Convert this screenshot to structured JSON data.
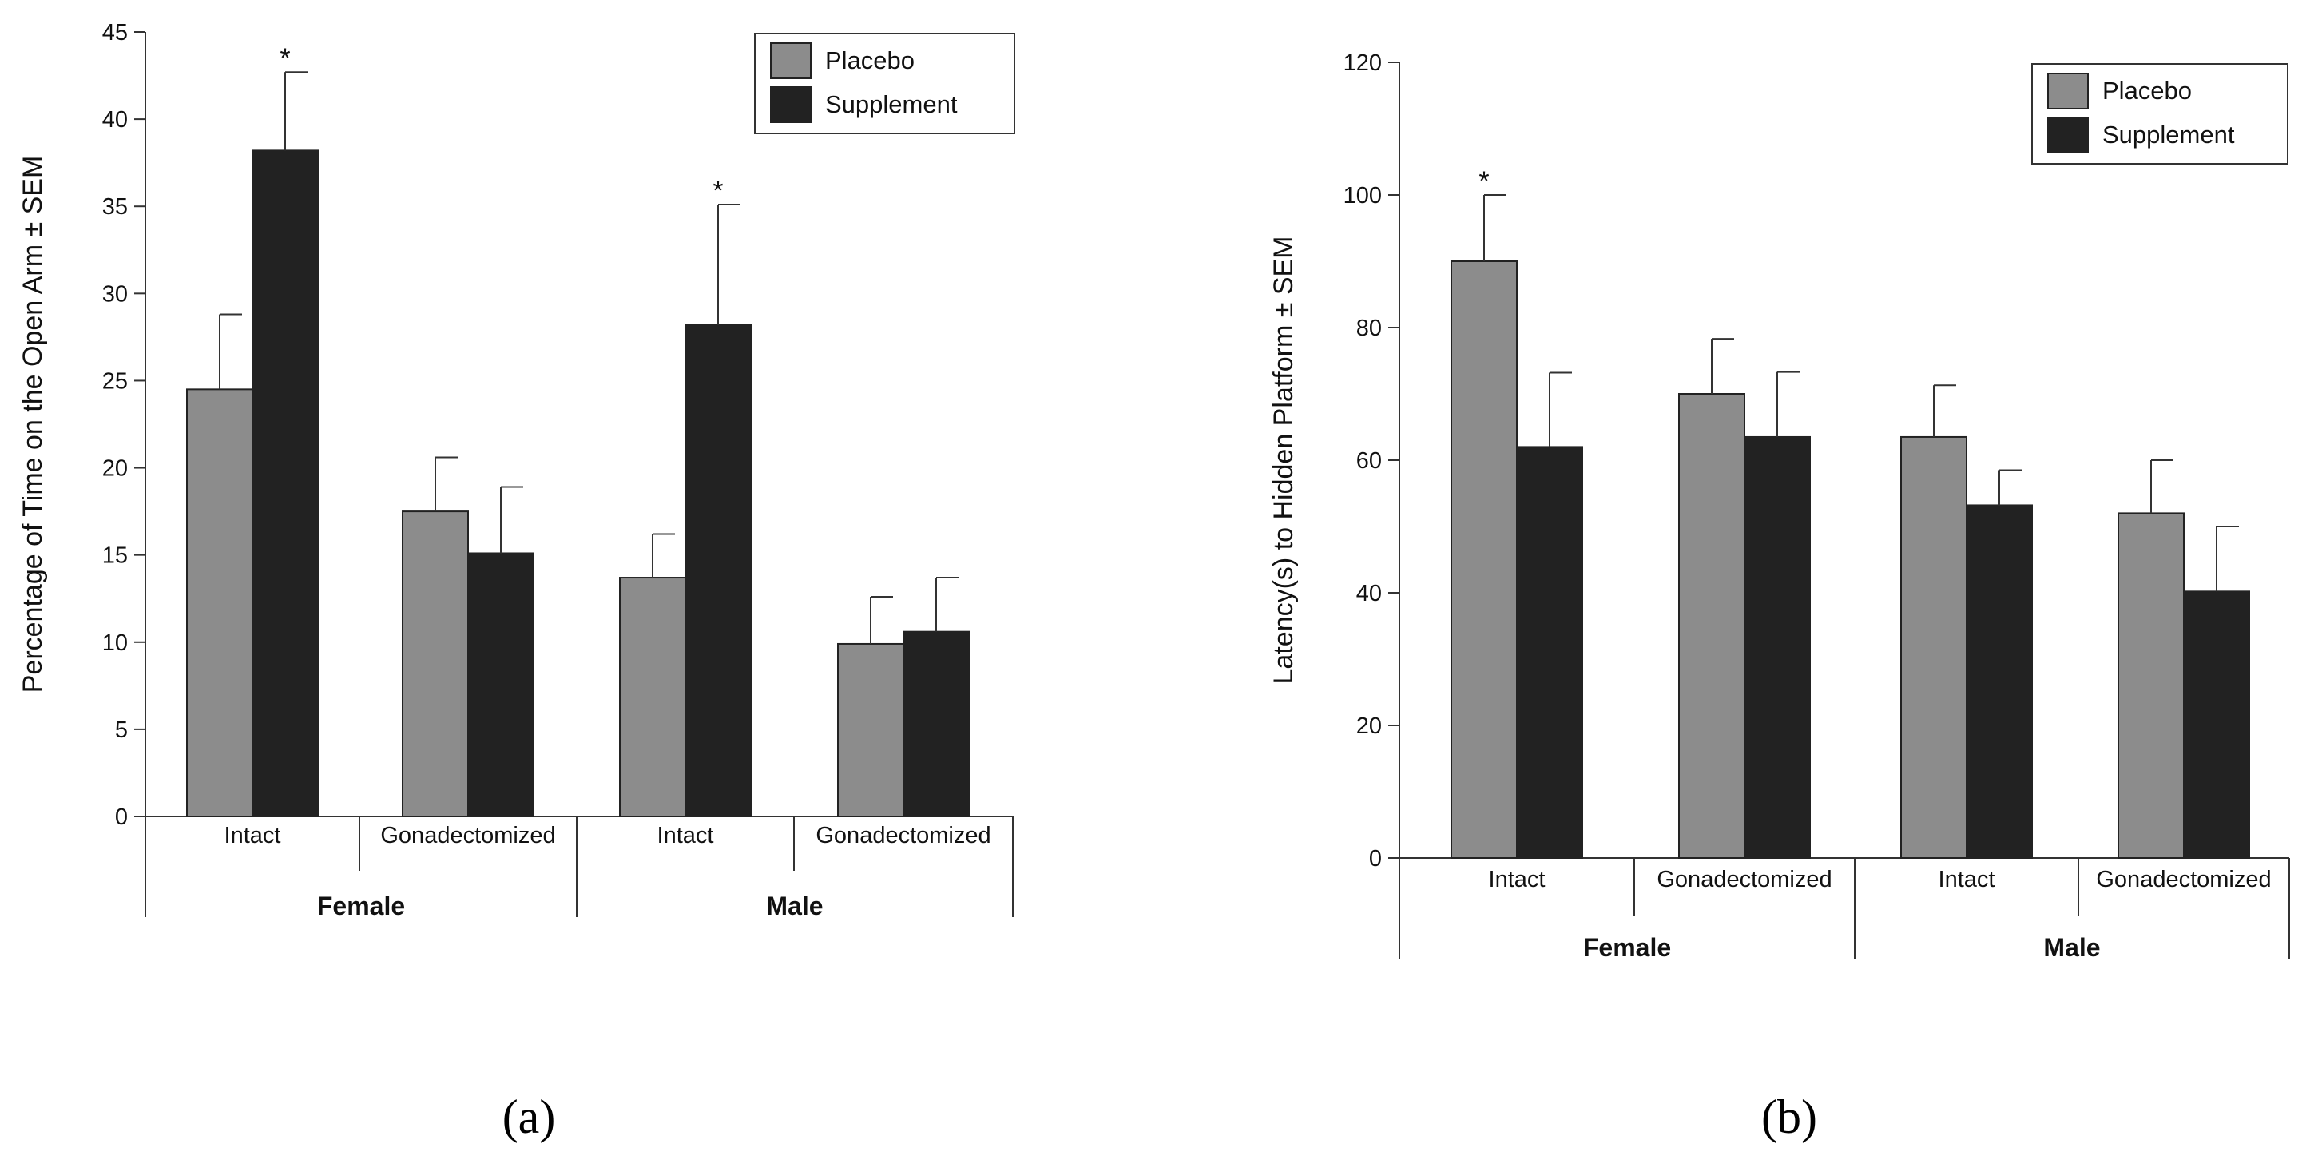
{
  "chart_data": [
    {
      "type": "bar",
      "panel_label": "(a)",
      "ylabel": "Percentage of Time on the Open Arm ± SEM",
      "ylim": [
        0,
        45
      ],
      "yticks": [
        0,
        5,
        10,
        15,
        20,
        25,
        30,
        35,
        40,
        45
      ],
      "categories": [
        "Intact",
        "Gonadectomized",
        "Intact",
        "Gonadectomized"
      ],
      "groups": [
        {
          "label": "Female",
          "categories": [
            0,
            1
          ]
        },
        {
          "label": "Male",
          "categories": [
            2,
            3
          ]
        }
      ],
      "series": [
        {
          "name": "Placebo",
          "color": "#8c8c8c",
          "values": [
            24.5,
            17.5,
            13.7,
            9.9
          ],
          "errors": [
            4.3,
            3.1,
            2.5,
            2.7
          ]
        },
        {
          "name": "Supplement",
          "color": "#222222",
          "values": [
            38.2,
            15.1,
            28.2,
            10.6
          ],
          "errors": [
            4.5,
            3.8,
            6.9,
            3.1
          ]
        }
      ],
      "significance": [
        {
          "category": 0,
          "series": 1,
          "marker": "*"
        },
        {
          "category": 2,
          "series": 1,
          "marker": "*"
        }
      ],
      "legend": {
        "position": "top-right",
        "entries": [
          "Placebo",
          "Supplement"
        ]
      }
    },
    {
      "type": "bar",
      "panel_label": "(b)",
      "ylabel": "Latency(s) to Hidden Platform ± SEM",
      "ylim": [
        0,
        120
      ],
      "yticks": [
        0,
        20,
        40,
        60,
        80,
        100,
        120
      ],
      "categories": [
        "Intact",
        "Gonadectomized",
        "Intact",
        "Gonadectomized"
      ],
      "groups": [
        {
          "label": "Female",
          "categories": [
            0,
            1
          ]
        },
        {
          "label": "Male",
          "categories": [
            2,
            3
          ]
        }
      ],
      "series": [
        {
          "name": "Placebo",
          "color": "#8c8c8c",
          "values": [
            90,
            70,
            63.5,
            52
          ],
          "errors": [
            10,
            8.3,
            7.8,
            8
          ]
        },
        {
          "name": "Supplement",
          "color": "#222222",
          "values": [
            62,
            63.5,
            53.2,
            40.2
          ],
          "errors": [
            11.2,
            9.8,
            5.3,
            9.8
          ]
        }
      ],
      "significance": [
        {
          "category": 0,
          "series": 0,
          "marker": "*"
        }
      ],
      "legend": {
        "position": "top-right",
        "entries": [
          "Placebo",
          "Supplement"
        ]
      }
    }
  ]
}
